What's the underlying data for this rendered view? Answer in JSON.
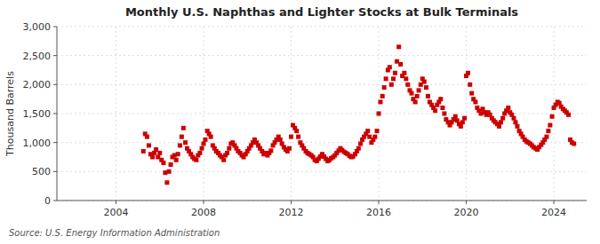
{
  "chart_data": {
    "type": "scatter",
    "title": "Monthly U.S. Naphthas and Lighter Stocks at Bulk Terminals",
    "y_label": "Thousand Barrels",
    "annotation": "Source: U.S. Energy Information Administration",
    "color": "#CC0000",
    "marker": "square",
    "grid": true,
    "xlim": [
      2001.3,
      2025.5
    ],
    "xticks": [
      2004,
      2008,
      2012,
      2016,
      2020,
      2024
    ],
    "ylim": [
      0,
      3000
    ],
    "yticks": [
      0,
      500,
      {
        "value": 1000,
        "label": "1,000"
      },
      {
        "value": 1500,
        "label": "1,500"
      },
      {
        "value": 2000,
        "label": "2,000"
      },
      {
        "value": 2500,
        "label": "2,500"
      },
      {
        "value": 3000,
        "label": "3,000"
      }
    ],
    "x": [
      2005.25,
      2005.33,
      2005.42,
      2005.5,
      2005.58,
      2005.67,
      2005.75,
      2005.83,
      2005.92,
      2006.0,
      2006.08,
      2006.17,
      2006.25,
      2006.33,
      2006.42,
      2006.5,
      2006.58,
      2006.67,
      2006.75,
      2006.83,
      2006.92,
      2007.0,
      2007.08,
      2007.17,
      2007.25,
      2007.33,
      2007.42,
      2007.5,
      2007.58,
      2007.67,
      2007.75,
      2007.83,
      2007.92,
      2008.0,
      2008.08,
      2008.17,
      2008.25,
      2008.33,
      2008.42,
      2008.5,
      2008.58,
      2008.67,
      2008.75,
      2008.83,
      2008.92,
      2009.0,
      2009.08,
      2009.17,
      2009.25,
      2009.33,
      2009.42,
      2009.5,
      2009.58,
      2009.67,
      2009.75,
      2009.83,
      2009.92,
      2010.0,
      2010.08,
      2010.17,
      2010.25,
      2010.33,
      2010.42,
      2010.5,
      2010.58,
      2010.67,
      2010.75,
      2010.83,
      2010.92,
      2011.0,
      2011.08,
      2011.17,
      2011.25,
      2011.33,
      2011.42,
      2011.5,
      2011.58,
      2011.67,
      2011.75,
      2011.83,
      2011.92,
      2012.0,
      2012.08,
      2012.17,
      2012.25,
      2012.33,
      2012.42,
      2012.5,
      2012.58,
      2012.67,
      2012.75,
      2012.83,
      2012.92,
      2013.0,
      2013.08,
      2013.17,
      2013.25,
      2013.33,
      2013.42,
      2013.5,
      2013.58,
      2013.67,
      2013.75,
      2013.83,
      2013.92,
      2014.0,
      2014.08,
      2014.17,
      2014.25,
      2014.33,
      2014.42,
      2014.5,
      2014.58,
      2014.67,
      2014.75,
      2014.83,
      2014.92,
      2015.0,
      2015.08,
      2015.17,
      2015.25,
      2015.33,
      2015.42,
      2015.5,
      2015.58,
      2015.67,
      2015.75,
      2015.83,
      2015.92,
      2016.0,
      2016.08,
      2016.17,
      2016.25,
      2016.33,
      2016.42,
      2016.5,
      2016.58,
      2016.67,
      2016.75,
      2016.83,
      2016.92,
      2017.0,
      2017.08,
      2017.17,
      2017.25,
      2017.33,
      2017.42,
      2017.5,
      2017.58,
      2017.67,
      2017.75,
      2017.83,
      2017.92,
      2018.0,
      2018.08,
      2018.17,
      2018.25,
      2018.33,
      2018.42,
      2018.5,
      2018.58,
      2018.67,
      2018.75,
      2018.83,
      2018.92,
      2019.0,
      2019.08,
      2019.17,
      2019.25,
      2019.33,
      2019.42,
      2019.5,
      2019.58,
      2019.67,
      2019.75,
      2019.83,
      2019.92,
      2020.0,
      2020.08,
      2020.17,
      2020.25,
      2020.33,
      2020.42,
      2020.5,
      2020.58,
      2020.67,
      2020.75,
      2020.83,
      2020.92,
      2021.0,
      2021.08,
      2021.17,
      2021.25,
      2021.33,
      2021.42,
      2021.5,
      2021.58,
      2021.67,
      2021.75,
      2021.83,
      2021.92,
      2022.0,
      2022.08,
      2022.17,
      2022.25,
      2022.33,
      2022.42,
      2022.5,
      2022.58,
      2022.67,
      2022.75,
      2022.83,
      2022.92,
      2023.0,
      2023.08,
      2023.17,
      2023.25,
      2023.33,
      2023.42,
      2023.5,
      2023.58,
      2023.67,
      2023.75,
      2023.83,
      2023.92,
      2024.0,
      2024.08,
      2024.17,
      2024.25,
      2024.33,
      2024.42,
      2024.5,
      2024.58,
      2024.67,
      2024.75,
      2024.83,
      2024.92
    ],
    "values": [
      850,
      1150,
      1100,
      950,
      800,
      750,
      820,
      880,
      750,
      820,
      700,
      650,
      480,
      310,
      500,
      620,
      750,
      780,
      700,
      800,
      950,
      1100,
      1250,
      1000,
      900,
      850,
      800,
      750,
      720,
      700,
      780,
      820,
      900,
      980,
      1050,
      1200,
      1150,
      1100,
      950,
      900,
      850,
      820,
      780,
      750,
      700,
      780,
      820,
      900,
      980,
      1000,
      950,
      900,
      850,
      820,
      780,
      750,
      800,
      850,
      900,
      950,
      1000,
      1050,
      1000,
      950,
      900,
      850,
      800,
      820,
      780,
      820,
      860,
      950,
      1000,
      1050,
      1100,
      1050,
      980,
      920,
      880,
      850,
      900,
      1100,
      1300,
      1250,
      1200,
      1100,
      1000,
      950,
      900,
      850,
      820,
      800,
      780,
      750,
      700,
      680,
      720,
      760,
      800,
      760,
      720,
      680,
      700,
      730,
      750,
      780,
      820,
      860,
      900,
      870,
      840,
      820,
      800,
      770,
      750,
      760,
      800,
      850,
      900,
      980,
      1050,
      1100,
      1150,
      1200,
      1100,
      1000,
      1050,
      1100,
      1200,
      1500,
      1700,
      1800,
      1950,
      2100,
      2250,
      2300,
      2000,
      2100,
      2200,
      2400,
      2650,
      2350,
      2150,
      2200,
      2100,
      2000,
      1900,
      1850,
      1750,
      1700,
      1800,
      1900,
      2000,
      2100,
      2050,
      1950,
      1800,
      1700,
      1650,
      1600,
      1550,
      1650,
      1700,
      1750,
      1600,
      1500,
      1400,
      1350,
      1300,
      1350,
      1400,
      1450,
      1380,
      1320,
      1280,
      1350,
      1420,
      2150,
      2200,
      2000,
      1850,
      1750,
      1700,
      1600,
      1550,
      1500,
      1580,
      1520,
      1480,
      1520,
      1480,
      1420,
      1380,
      1350,
      1320,
      1280,
      1350,
      1420,
      1500,
      1550,
      1600,
      1520,
      1480,
      1420,
      1350,
      1280,
      1200,
      1150,
      1100,
      1050,
      1020,
      1000,
      980,
      950,
      920,
      900,
      880,
      920,
      960,
      1000,
      1050,
      1100,
      1200,
      1300,
      1450,
      1600,
      1650,
      1700,
      1680,
      1620,
      1580,
      1550,
      1520,
      1480,
      1050,
      1000,
      980
    ]
  }
}
